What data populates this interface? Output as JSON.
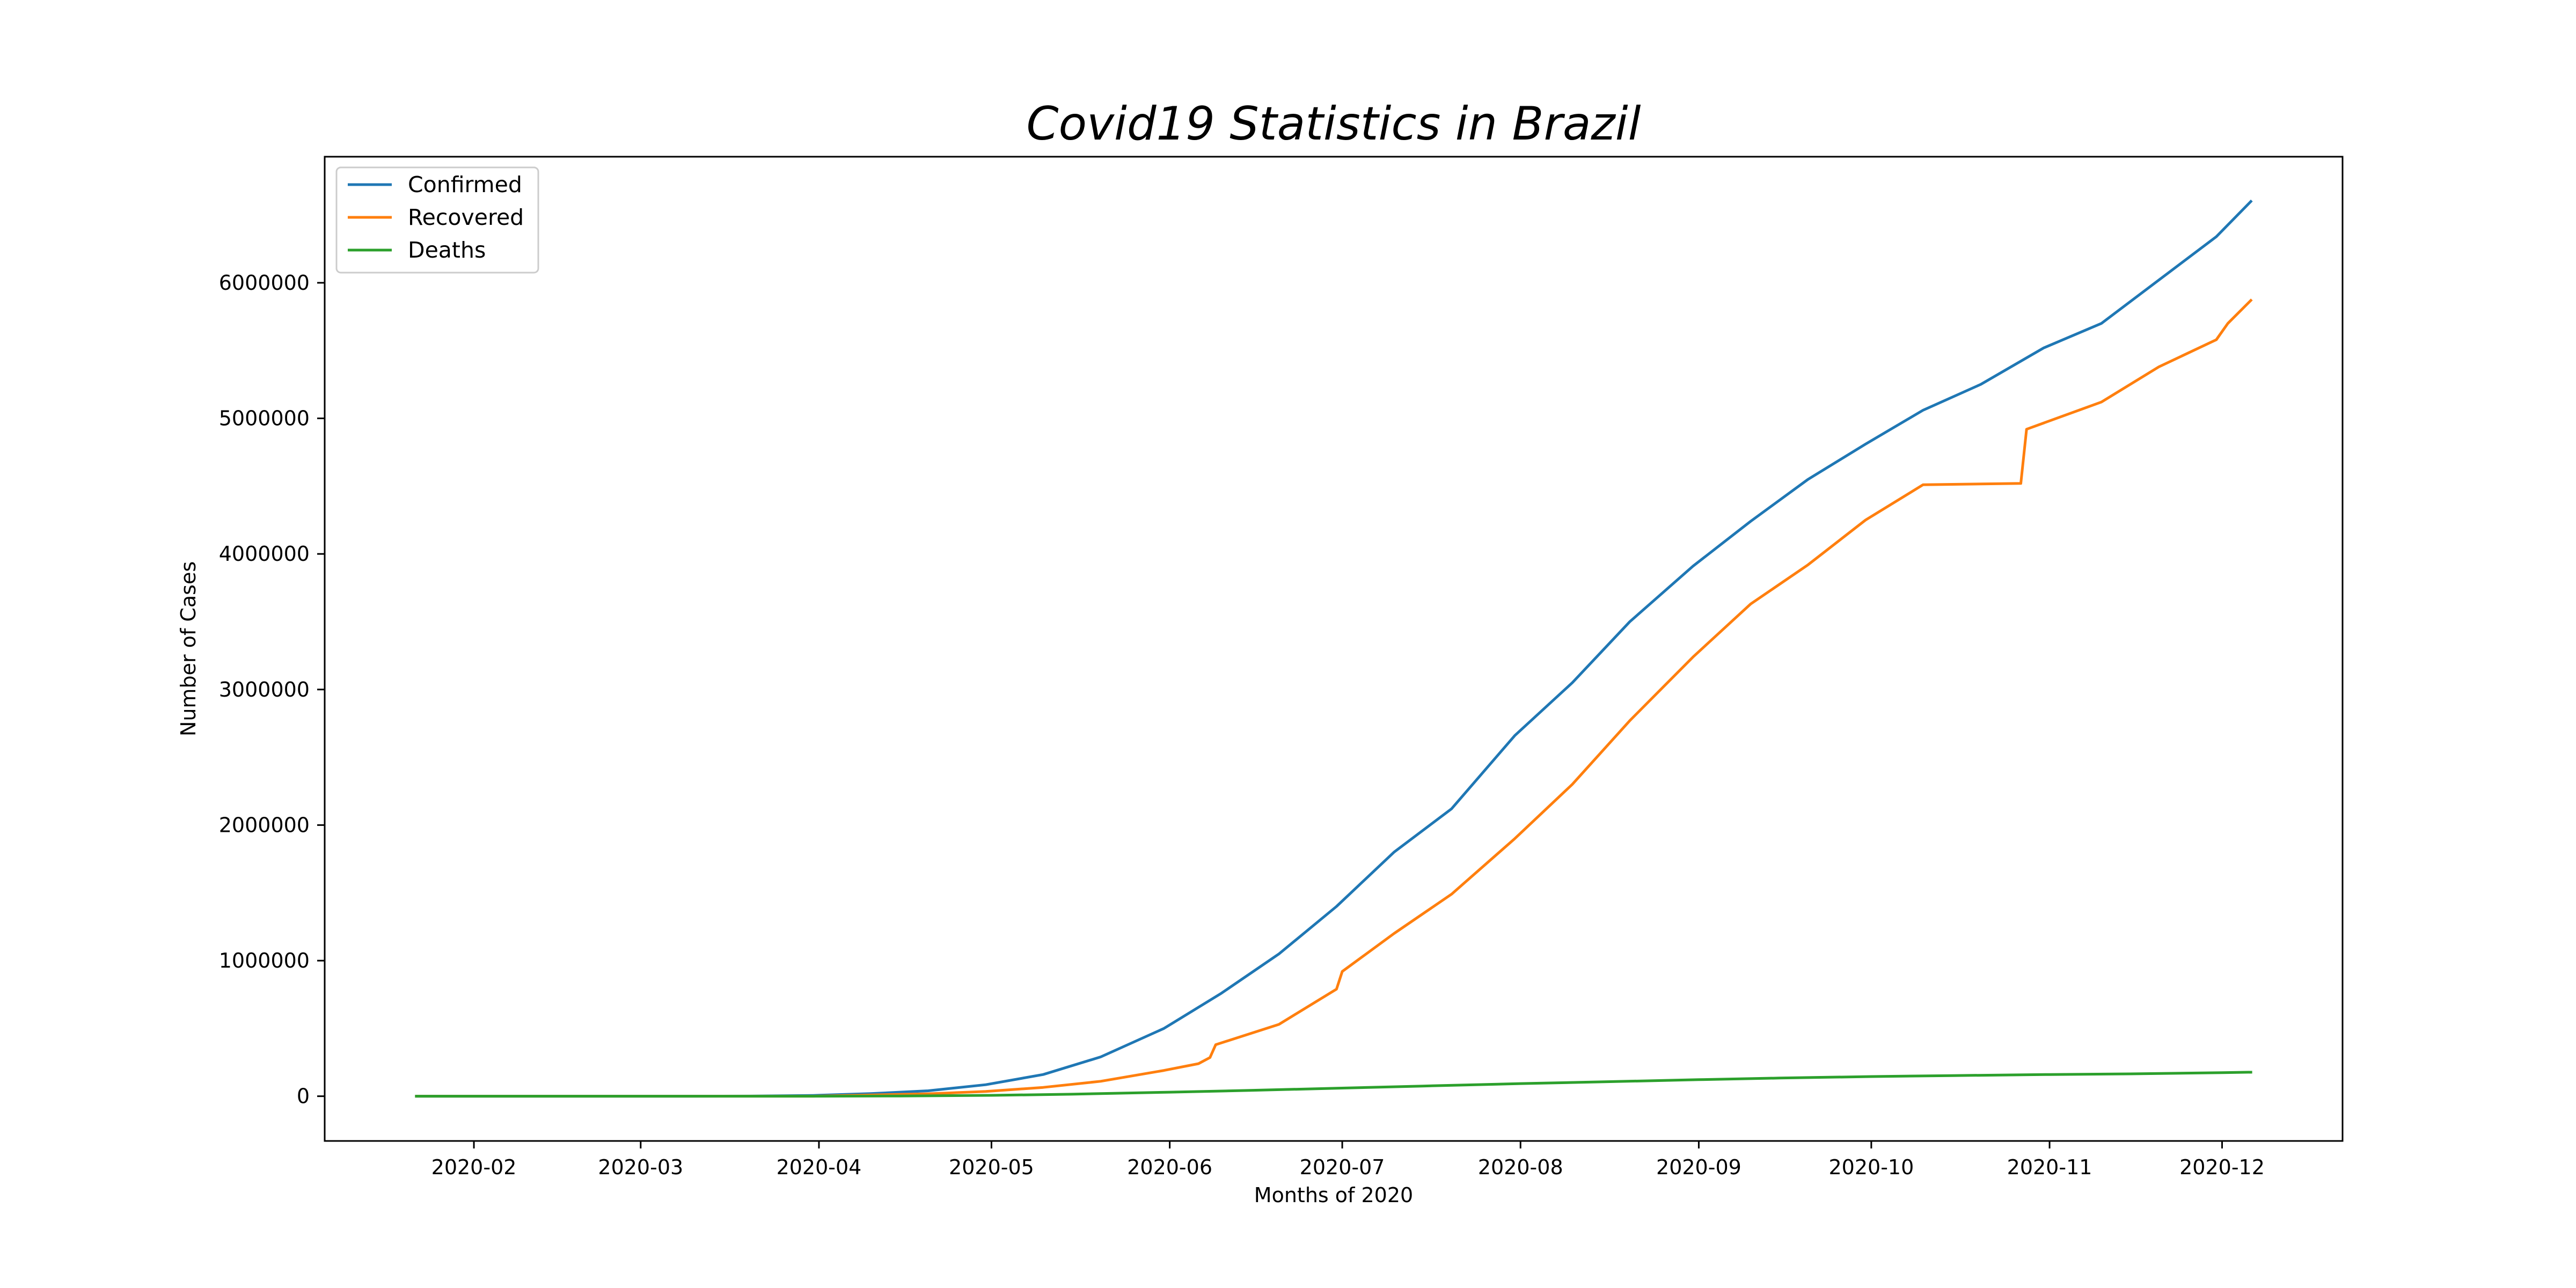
{
  "chart_data": {
    "type": "line",
    "title": "Covid19 Statistics in Brazil",
    "xlabel": "Months of 2020",
    "ylabel": "Number of Cases",
    "x_range": [
      "2020-01-22",
      "2020-12-06"
    ],
    "x_ticks": [
      "2020-02",
      "2020-03",
      "2020-04",
      "2020-05",
      "2020-06",
      "2020-07",
      "2020-08",
      "2020-09",
      "2020-10",
      "2020-11",
      "2020-12"
    ],
    "ylim": [
      -330000,
      6930000
    ],
    "y_ticks": [
      0,
      1000000,
      2000000,
      3000000,
      4000000,
      5000000,
      6000000
    ],
    "grid": false,
    "legend": "top-left",
    "series": [
      {
        "name": "Confirmed",
        "color": "#1f77b4",
        "points": [
          [
            "2020-01-22",
            0
          ],
          [
            "2020-02-25",
            0
          ],
          [
            "2020-03-10",
            30
          ],
          [
            "2020-03-20",
            900
          ],
          [
            "2020-03-31",
            5700
          ],
          [
            "2020-04-10",
            19000
          ],
          [
            "2020-04-20",
            40000
          ],
          [
            "2020-04-30",
            85000
          ],
          [
            "2020-05-10",
            160000
          ],
          [
            "2020-05-20",
            290000
          ],
          [
            "2020-05-31",
            500000
          ],
          [
            "2020-06-10",
            760000
          ],
          [
            "2020-06-20",
            1050000
          ],
          [
            "2020-06-30",
            1400000
          ],
          [
            "2020-07-10",
            1800000
          ],
          [
            "2020-07-20",
            2120000
          ],
          [
            "2020-07-31",
            2660000
          ],
          [
            "2020-08-10",
            3050000
          ],
          [
            "2020-08-20",
            3500000
          ],
          [
            "2020-08-31",
            3910000
          ],
          [
            "2020-09-10",
            4240000
          ],
          [
            "2020-09-20",
            4550000
          ],
          [
            "2020-09-30",
            4810000
          ],
          [
            "2020-10-10",
            5060000
          ],
          [
            "2020-10-20",
            5250000
          ],
          [
            "2020-10-31",
            5520000
          ],
          [
            "2020-11-10",
            5700000
          ],
          [
            "2020-11-20",
            6020000
          ],
          [
            "2020-11-30",
            6340000
          ],
          [
            "2020-12-06",
            6600000
          ]
        ]
      },
      {
        "name": "Recovered",
        "color": "#ff7f0e",
        "points": [
          [
            "2020-01-22",
            0
          ],
          [
            "2020-03-31",
            100
          ],
          [
            "2020-04-10",
            9000
          ],
          [
            "2020-04-20",
            18000
          ],
          [
            "2020-04-30",
            35000
          ],
          [
            "2020-05-10",
            65000
          ],
          [
            "2020-05-20",
            110000
          ],
          [
            "2020-05-31",
            190000
          ],
          [
            "2020-06-06",
            240000
          ],
          [
            "2020-06-08",
            285000
          ],
          [
            "2020-06-09",
            380000
          ],
          [
            "2020-06-20",
            530000
          ],
          [
            "2020-06-30",
            790000
          ],
          [
            "2020-07-01",
            920000
          ],
          [
            "2020-07-10",
            1200000
          ],
          [
            "2020-07-20",
            1490000
          ],
          [
            "2020-07-31",
            1900000
          ],
          [
            "2020-08-10",
            2300000
          ],
          [
            "2020-08-20",
            2770000
          ],
          [
            "2020-08-31",
            3240000
          ],
          [
            "2020-09-10",
            3630000
          ],
          [
            "2020-09-20",
            3920000
          ],
          [
            "2020-09-30",
            4250000
          ],
          [
            "2020-10-10",
            4510000
          ],
          [
            "2020-10-27",
            4520000
          ],
          [
            "2020-10-28",
            4920000
          ],
          [
            "2020-11-10",
            5120000
          ],
          [
            "2020-11-20",
            5380000
          ],
          [
            "2020-11-30",
            5580000
          ],
          [
            "2020-12-02",
            5700000
          ],
          [
            "2020-12-06",
            5870000
          ]
        ]
      },
      {
        "name": "Deaths",
        "color": "#2ca02c",
        "points": [
          [
            "2020-01-22",
            0
          ],
          [
            "2020-03-20",
            10
          ],
          [
            "2020-04-01",
            250
          ],
          [
            "2020-04-15",
            1700
          ],
          [
            "2020-05-01",
            6300
          ],
          [
            "2020-05-15",
            14800
          ],
          [
            "2020-06-01",
            30000
          ],
          [
            "2020-06-15",
            43000
          ],
          [
            "2020-07-01",
            60000
          ],
          [
            "2020-07-15",
            75000
          ],
          [
            "2020-08-01",
            93000
          ],
          [
            "2020-08-15",
            106000
          ],
          [
            "2020-09-01",
            122000
          ],
          [
            "2020-09-15",
            134000
          ],
          [
            "2020-10-01",
            145000
          ],
          [
            "2020-10-15",
            152000
          ],
          [
            "2020-11-01",
            160000
          ],
          [
            "2020-11-15",
            165000
          ],
          [
            "2020-12-01",
            174000
          ],
          [
            "2020-12-06",
            177000
          ]
        ]
      }
    ]
  }
}
